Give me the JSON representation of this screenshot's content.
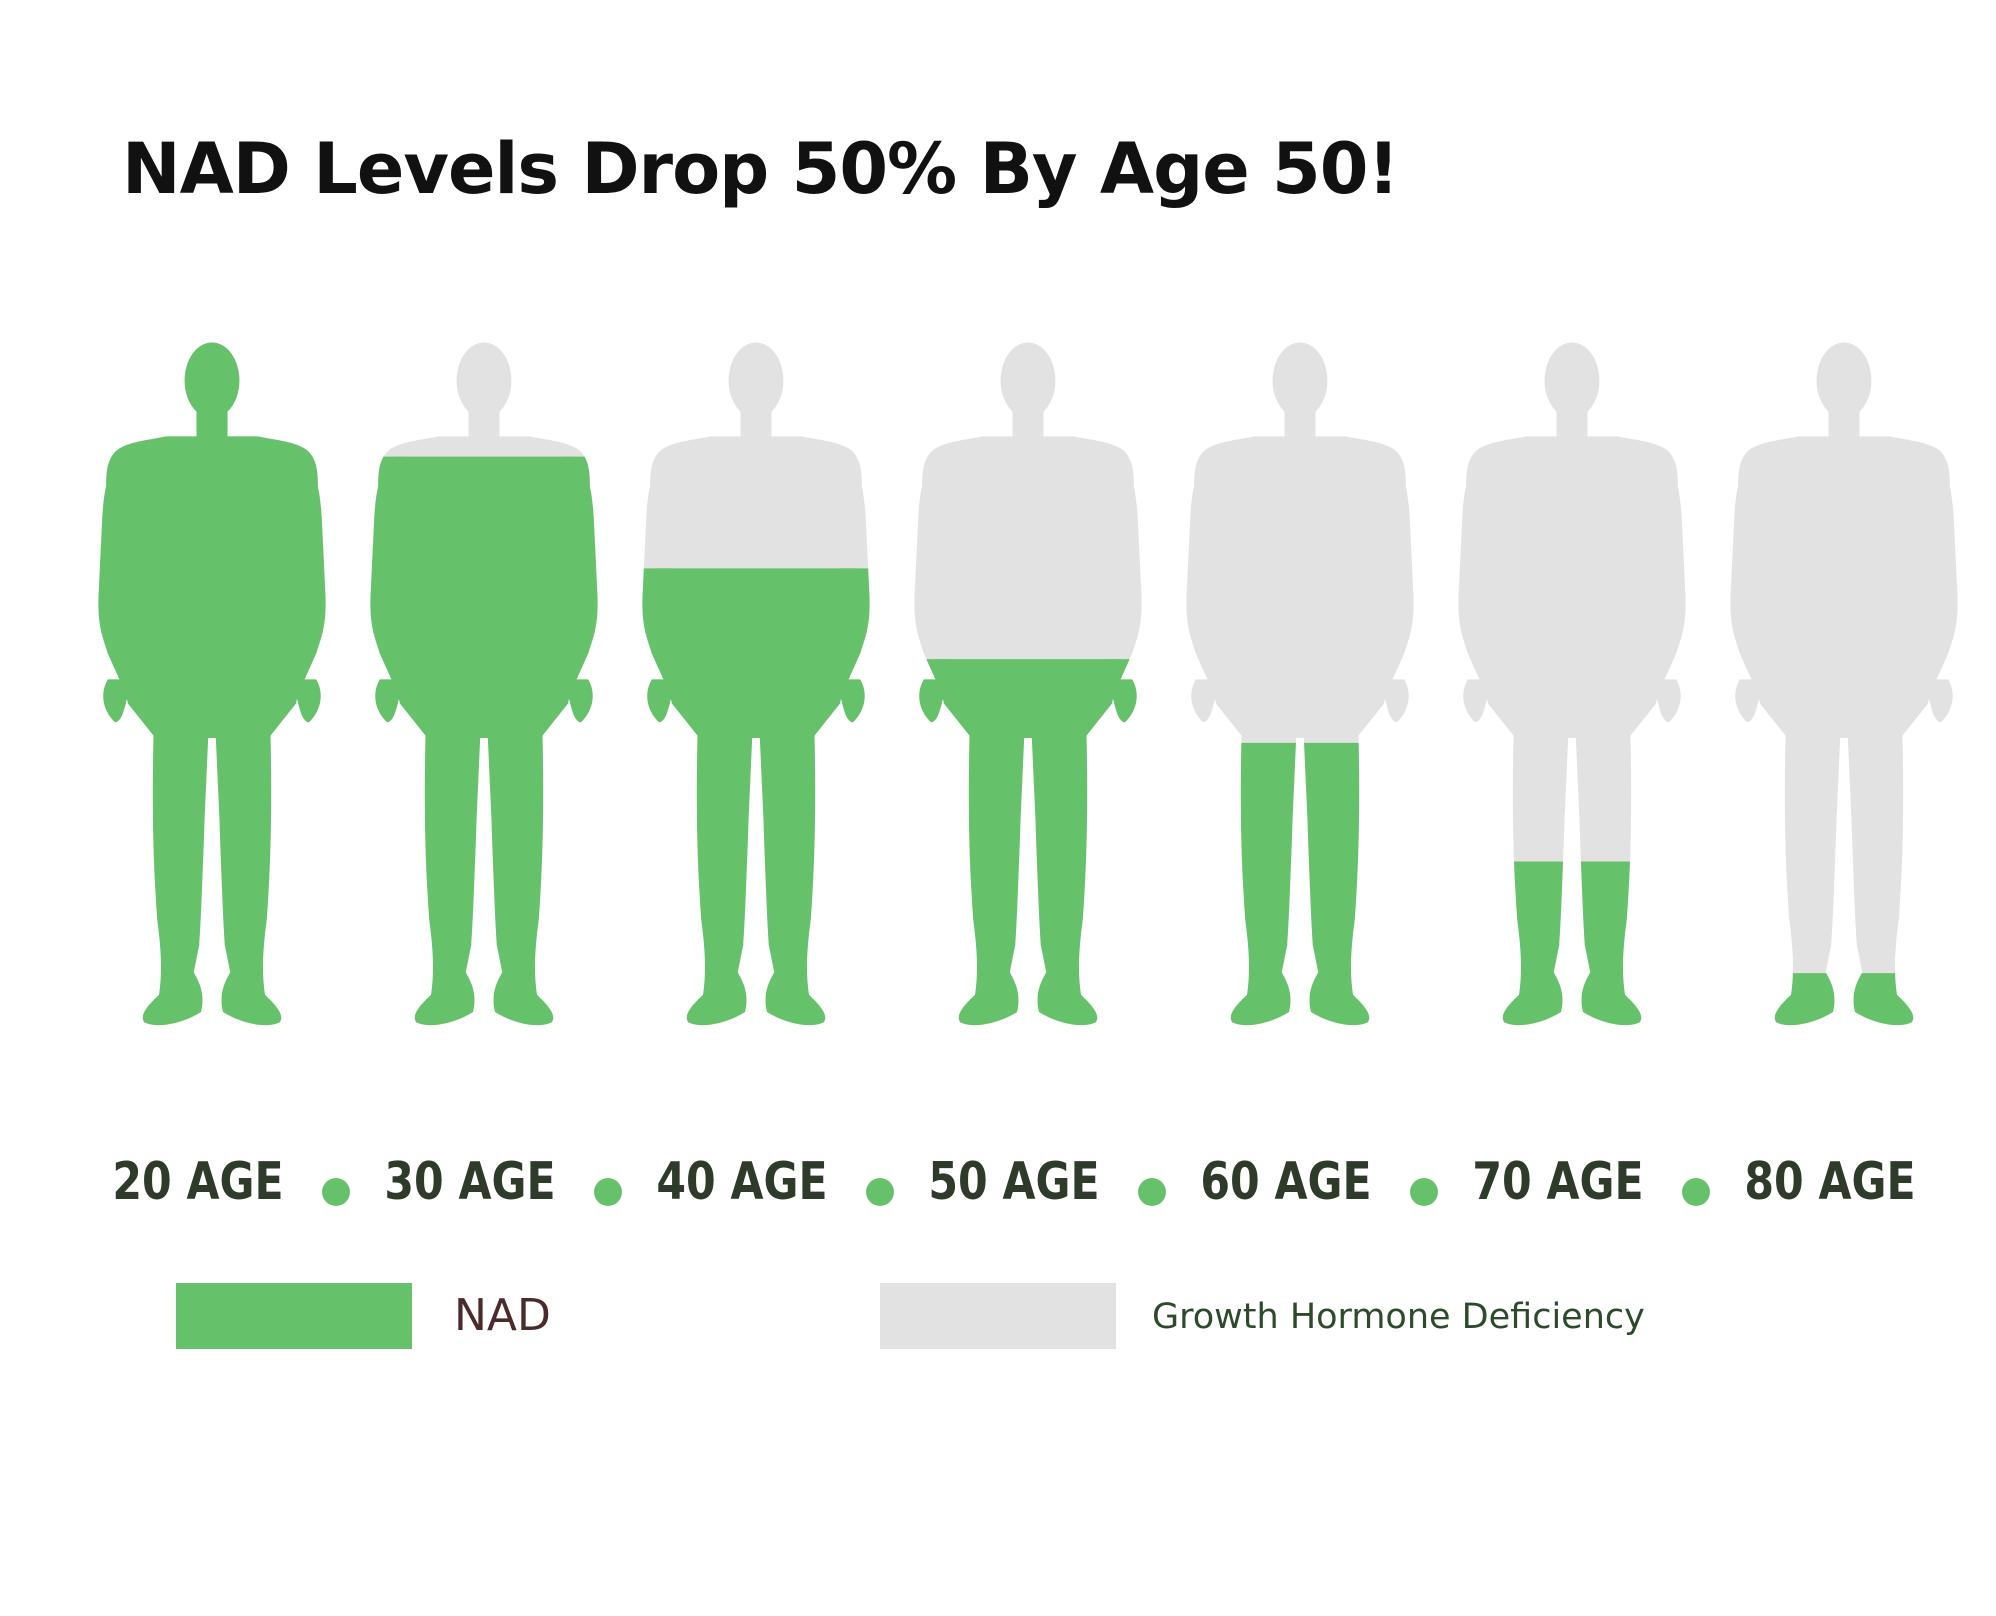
{
  "title": "NAD Levels Drop 50% By Age 50!",
  "colors": {
    "nad": "#66c26a",
    "deficiency": "#e2e2e2",
    "age_label": "#2f3b2a",
    "dot": "#66c26a"
  },
  "chart_data": {
    "type": "pictograph",
    "title": "NAD Levels Drop 50% By Age 50!",
    "categories": [
      "20 AGE",
      "30 AGE",
      "40 AGE",
      "50 AGE",
      "60 AGE",
      "70 AGE",
      "80 AGE"
    ],
    "series": [
      {
        "name": "NAD",
        "unit": "fraction of figure filled",
        "values": [
          1.0,
          0.83,
          0.67,
          0.54,
          0.42,
          0.25,
          0.09
        ]
      }
    ],
    "legend": [
      {
        "label": "NAD",
        "color": "#66c26a"
      },
      {
        "label": "Growth Hormone Deficiency",
        "color": "#e2e2e2"
      }
    ],
    "legend_placement": "bottom",
    "grid": false
  }
}
